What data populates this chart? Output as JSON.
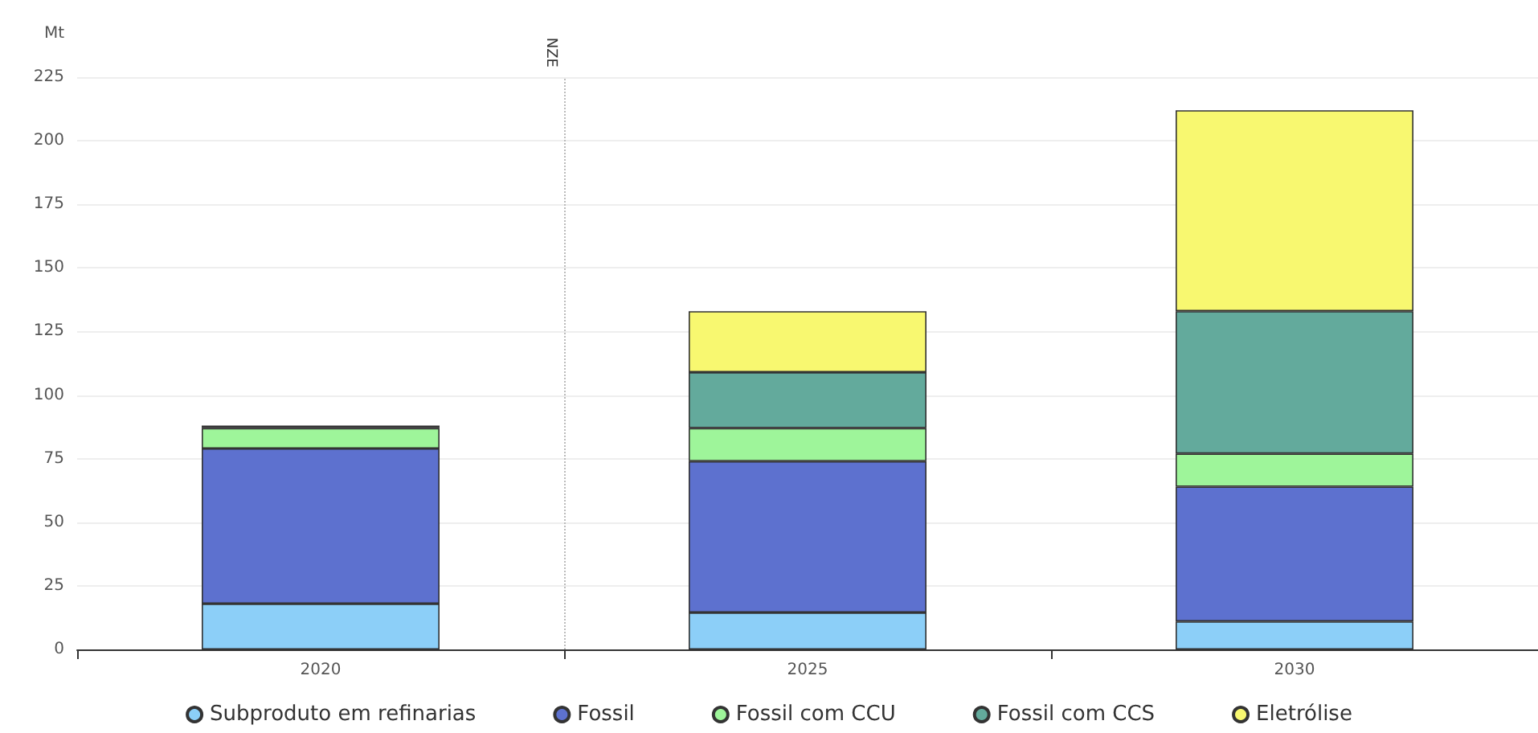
{
  "chart_data": {
    "type": "bar",
    "stacked": true,
    "ylabel": "Mt",
    "x": [
      2020,
      2025,
      2030
    ],
    "xlim": [
      2017.5,
      2032.5
    ],
    "xticks": [
      2020,
      2025,
      2030
    ],
    "ylim": [
      0,
      225
    ],
    "yticks": [
      0,
      25,
      50,
      75,
      100,
      125,
      150,
      175,
      200,
      225
    ],
    "grid": "y",
    "legend": "bottom",
    "series": [
      {
        "name": "Subproduto em refinarias",
        "color": "#8ccff8",
        "values": [
          18,
          14.5,
          11
        ]
      },
      {
        "name": "Fossil",
        "color": "#5d71cf",
        "values": [
          61,
          59.5,
          53
        ]
      },
      {
        "name": "Fossil com CCU",
        "color": "#9ef59a",
        "values": [
          8,
          13,
          13
        ]
      },
      {
        "name": "Fossil com CCS",
        "color": "#63aa9c",
        "values": [
          1,
          22,
          56
        ]
      },
      {
        "name": "Eletrólise",
        "color": "#f8f870",
        "values": [
          null,
          24,
          79
        ]
      }
    ],
    "ref_lines": [
      {
        "axis": "x",
        "value": 2022.5,
        "label": "NZE",
        "color": "#bbbbbb",
        "line_style": "dotted"
      }
    ]
  }
}
